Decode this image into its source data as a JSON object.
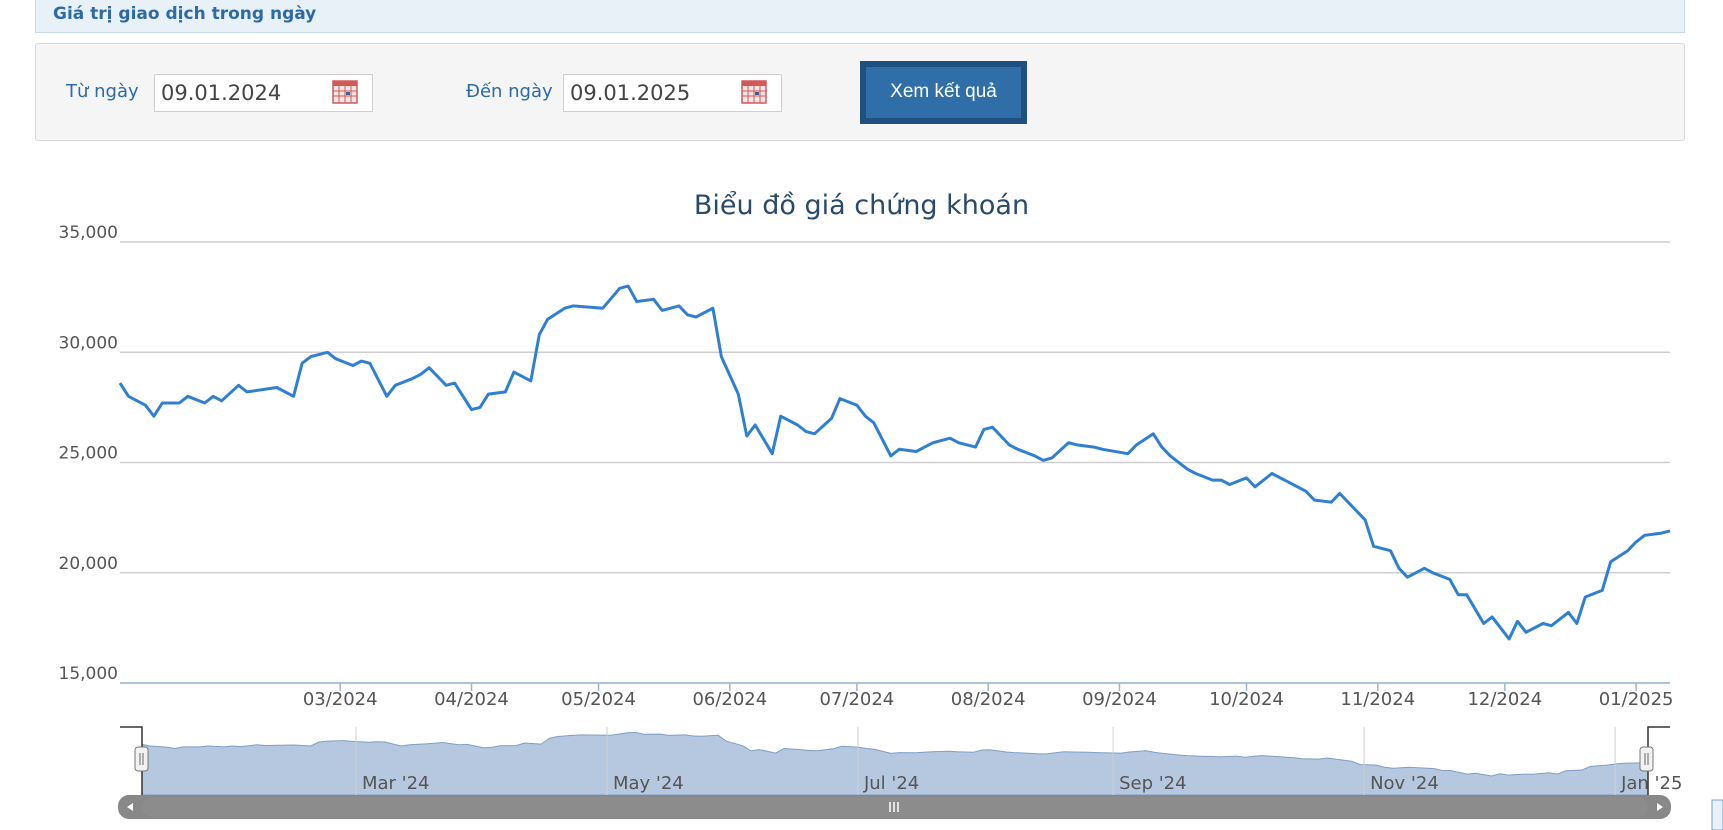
{
  "header": {
    "title": "Giá trị giao dịch trong ngày"
  },
  "filter": {
    "from_label": "Từ ngày",
    "from_value": "09.01.2024",
    "to_label": "Đến ngày",
    "to_value": "09.01.2025",
    "submit_label": "Xem kết quả",
    "calendar_icon": "calendar-icon"
  },
  "colors": {
    "accent": "#2c6aa8",
    "line": "#2f7fd3",
    "button": "#2f6ea9",
    "navigator_fill": "#b6c8e0"
  },
  "chart_data": {
    "type": "line",
    "title": "Biểu đồ giá chứng khoán",
    "x_start": "2024-01-09",
    "x_end": "2025-01-09",
    "ylim": [
      15000,
      35000
    ],
    "y_ticks": [
      "35,000",
      "30,000",
      "25,000",
      "20,000",
      "15,000"
    ],
    "y_tick_values": [
      35000,
      30000,
      25000,
      20000,
      15000
    ],
    "x_ticks": [
      {
        "label": "03/2024",
        "date": "2024-03-01"
      },
      {
        "label": "04/2024",
        "date": "2024-04-01"
      },
      {
        "label": "05/2024",
        "date": "2024-05-01"
      },
      {
        "label": "06/2024",
        "date": "2024-06-01"
      },
      {
        "label": "07/2024",
        "date": "2024-07-01"
      },
      {
        "label": "08/2024",
        "date": "2024-08-01"
      },
      {
        "label": "09/2024",
        "date": "2024-09-01"
      },
      {
        "label": "10/2024",
        "date": "2024-10-01"
      },
      {
        "label": "11/2024",
        "date": "2024-11-01"
      },
      {
        "label": "12/2024",
        "date": "2024-12-01"
      },
      {
        "label": "01/2025",
        "date": "2025-01-01"
      }
    ],
    "navigator_ticks": [
      {
        "label": "Mar '24",
        "date": "2024-03-01"
      },
      {
        "label": "May '24",
        "date": "2024-05-01"
      },
      {
        "label": "Jul '24",
        "date": "2024-07-01"
      },
      {
        "label": "Sep '24",
        "date": "2024-09-01"
      },
      {
        "label": "Nov '24",
        "date": "2024-11-01"
      },
      {
        "label": "Jan '25",
        "date": "2025-01-01"
      }
    ],
    "grid": true,
    "series": [
      {
        "points": [
          [
            "2024-01-09",
            28600
          ],
          [
            "2024-01-11",
            28000
          ],
          [
            "2024-01-15",
            27600
          ],
          [
            "2024-01-17",
            27100
          ],
          [
            "2024-01-19",
            27700
          ],
          [
            "2024-01-23",
            27700
          ],
          [
            "2024-01-25",
            28000
          ],
          [
            "2024-01-29",
            27700
          ],
          [
            "2024-01-31",
            28000
          ],
          [
            "2024-02-02",
            27800
          ],
          [
            "2024-02-06",
            28500
          ],
          [
            "2024-02-08",
            28200
          ],
          [
            "2024-02-15",
            28400
          ],
          [
            "2024-02-19",
            28000
          ],
          [
            "2024-02-21",
            29500
          ],
          [
            "2024-02-23",
            29800
          ],
          [
            "2024-02-27",
            30000
          ],
          [
            "2024-02-29",
            29700
          ],
          [
            "2024-03-04",
            29400
          ],
          [
            "2024-03-06",
            29600
          ],
          [
            "2024-03-08",
            29500
          ],
          [
            "2024-03-12",
            28000
          ],
          [
            "2024-03-14",
            28500
          ],
          [
            "2024-03-18",
            28800
          ],
          [
            "2024-03-20",
            29000
          ],
          [
            "2024-03-22",
            29300
          ],
          [
            "2024-03-26",
            28500
          ],
          [
            "2024-03-28",
            28600
          ],
          [
            "2024-04-01",
            27400
          ],
          [
            "2024-04-03",
            27500
          ],
          [
            "2024-04-05",
            28100
          ],
          [
            "2024-04-09",
            28200
          ],
          [
            "2024-04-11",
            29100
          ],
          [
            "2024-04-15",
            28700
          ],
          [
            "2024-04-17",
            30800
          ],
          [
            "2024-04-19",
            31500
          ],
          [
            "2024-04-23",
            32000
          ],
          [
            "2024-04-25",
            32100
          ],
          [
            "2024-05-02",
            32000
          ],
          [
            "2024-05-06",
            32900
          ],
          [
            "2024-05-08",
            33000
          ],
          [
            "2024-05-10",
            32300
          ],
          [
            "2024-05-14",
            32400
          ],
          [
            "2024-05-16",
            31900
          ],
          [
            "2024-05-20",
            32100
          ],
          [
            "2024-05-22",
            31700
          ],
          [
            "2024-05-24",
            31600
          ],
          [
            "2024-05-28",
            32000
          ],
          [
            "2024-05-30",
            29800
          ],
          [
            "2024-06-03",
            28100
          ],
          [
            "2024-06-05",
            26200
          ],
          [
            "2024-06-07",
            26700
          ],
          [
            "2024-06-11",
            25400
          ],
          [
            "2024-06-13",
            27100
          ],
          [
            "2024-06-17",
            26700
          ],
          [
            "2024-06-19",
            26400
          ],
          [
            "2024-06-21",
            26300
          ],
          [
            "2024-06-25",
            27000
          ],
          [
            "2024-06-27",
            27900
          ],
          [
            "2024-07-01",
            27600
          ],
          [
            "2024-07-03",
            27100
          ],
          [
            "2024-07-05",
            26800
          ],
          [
            "2024-07-09",
            25300
          ],
          [
            "2024-07-11",
            25600
          ],
          [
            "2024-07-15",
            25500
          ],
          [
            "2024-07-17",
            25700
          ],
          [
            "2024-07-19",
            25900
          ],
          [
            "2024-07-23",
            26100
          ],
          [
            "2024-07-25",
            25900
          ],
          [
            "2024-07-29",
            25700
          ],
          [
            "2024-07-31",
            26500
          ],
          [
            "2024-08-02",
            26600
          ],
          [
            "2024-08-06",
            25800
          ],
          [
            "2024-08-08",
            25600
          ],
          [
            "2024-08-12",
            25300
          ],
          [
            "2024-08-14",
            25100
          ],
          [
            "2024-08-16",
            25200
          ],
          [
            "2024-08-20",
            25900
          ],
          [
            "2024-08-22",
            25800
          ],
          [
            "2024-08-26",
            25700
          ],
          [
            "2024-08-28",
            25600
          ],
          [
            "2024-09-03",
            25400
          ],
          [
            "2024-09-05",
            25800
          ],
          [
            "2024-09-09",
            26300
          ],
          [
            "2024-09-11",
            25700
          ],
          [
            "2024-09-13",
            25300
          ],
          [
            "2024-09-17",
            24700
          ],
          [
            "2024-09-19",
            24500
          ],
          [
            "2024-09-23",
            24200
          ],
          [
            "2024-09-25",
            24200
          ],
          [
            "2024-09-27",
            24000
          ],
          [
            "2024-10-01",
            24300
          ],
          [
            "2024-10-03",
            23900
          ],
          [
            "2024-10-07",
            24500
          ],
          [
            "2024-10-09",
            24300
          ],
          [
            "2024-10-11",
            24100
          ],
          [
            "2024-10-15",
            23700
          ],
          [
            "2024-10-17",
            23300
          ],
          [
            "2024-10-21",
            23200
          ],
          [
            "2024-10-23",
            23600
          ],
          [
            "2024-10-25",
            23200
          ],
          [
            "2024-10-29",
            22400
          ],
          [
            "2024-10-31",
            21200
          ],
          [
            "2024-11-04",
            21000
          ],
          [
            "2024-11-06",
            20200
          ],
          [
            "2024-11-08",
            19800
          ],
          [
            "2024-11-12",
            20200
          ],
          [
            "2024-11-14",
            20000
          ],
          [
            "2024-11-18",
            19700
          ],
          [
            "2024-11-20",
            19000
          ],
          [
            "2024-11-22",
            19000
          ],
          [
            "2024-11-26",
            17700
          ],
          [
            "2024-11-28",
            18000
          ],
          [
            "2024-12-02",
            17000
          ],
          [
            "2024-12-04",
            17800
          ],
          [
            "2024-12-06",
            17300
          ],
          [
            "2024-12-10",
            17700
          ],
          [
            "2024-12-12",
            17600
          ],
          [
            "2024-12-16",
            18200
          ],
          [
            "2024-12-18",
            17700
          ],
          [
            "2024-12-20",
            18900
          ],
          [
            "2024-12-24",
            19200
          ],
          [
            "2024-12-26",
            20500
          ],
          [
            "2024-12-30",
            21000
          ],
          [
            "2025-01-01",
            21400
          ],
          [
            "2025-01-03",
            21700
          ],
          [
            "2025-01-07",
            21800
          ],
          [
            "2025-01-09",
            21900
          ]
        ]
      }
    ]
  }
}
